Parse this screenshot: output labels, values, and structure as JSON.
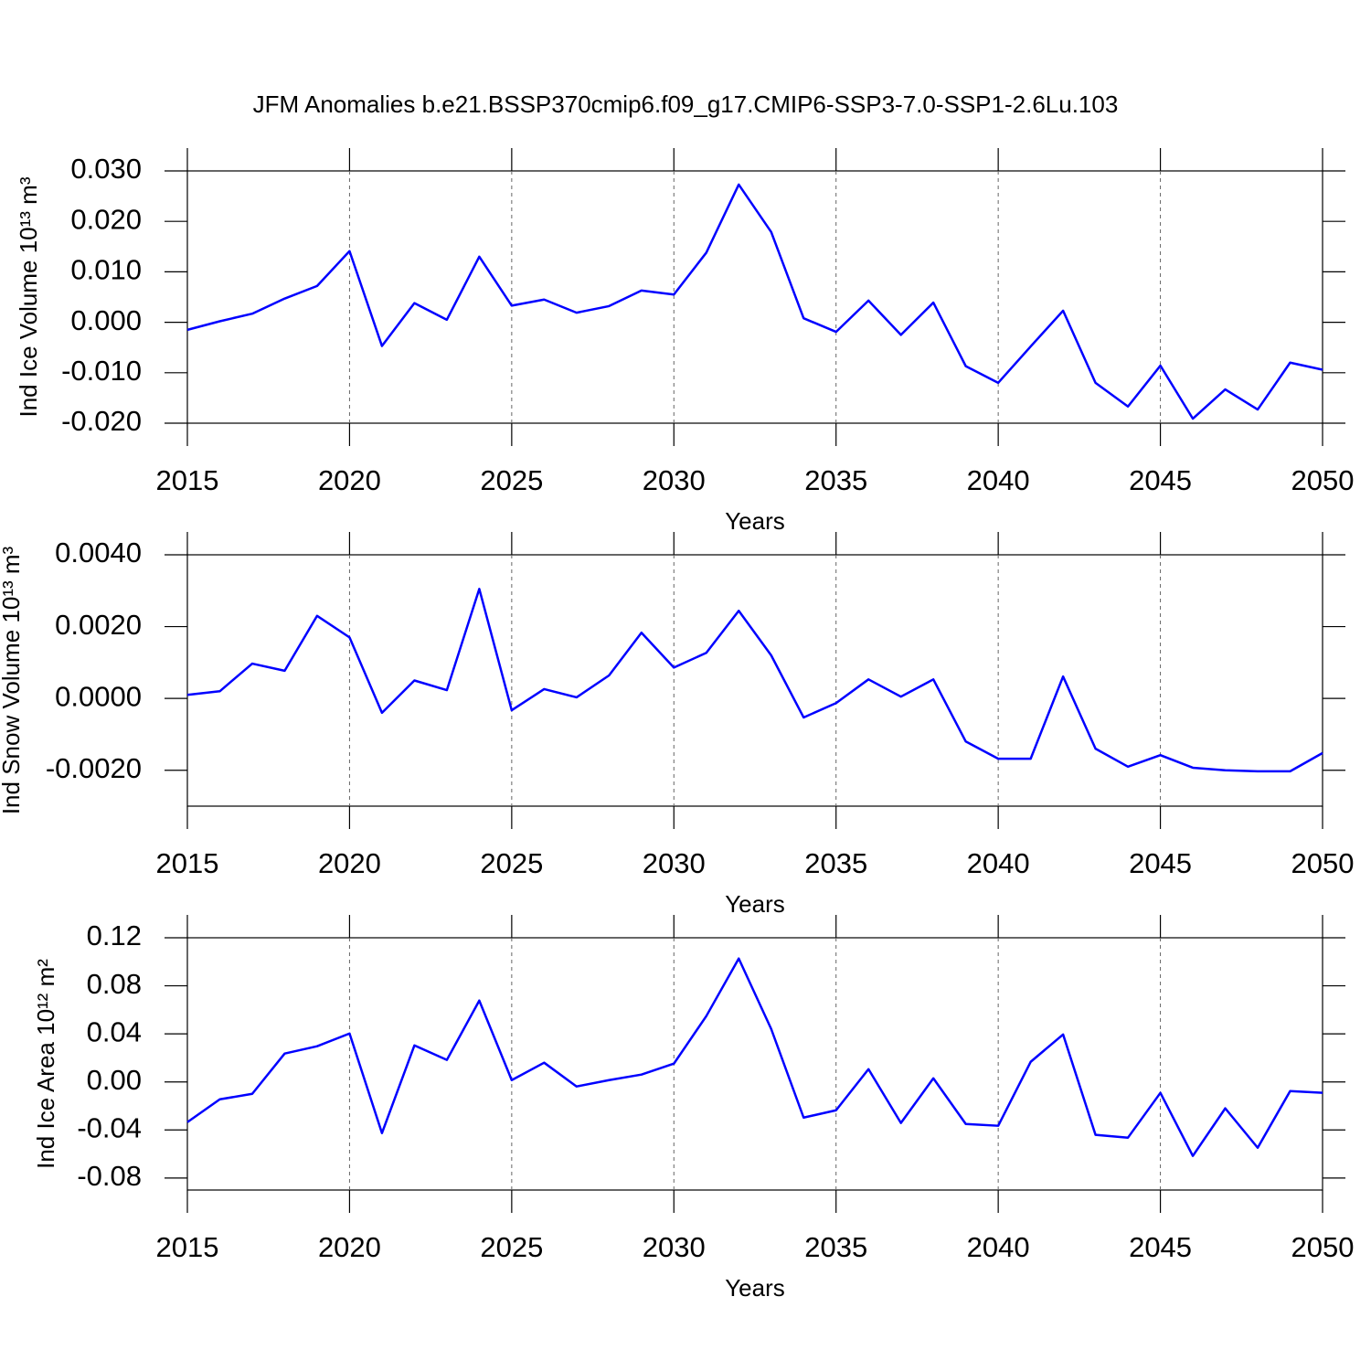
{
  "title": "JFM Anomalies b.e21.BSSP370cmip6.f09_g17.CMIP6-SSP3-7.0-SSP1-2.6Lu.103",
  "chart_data": [
    {
      "type": "line",
      "xlabel": "Years",
      "ylabel": "Ind Ice Volume 10¹³ m³",
      "x": [
        2015,
        2016,
        2017,
        2018,
        2019,
        2020,
        2021,
        2022,
        2023,
        2024,
        2025,
        2026,
        2027,
        2028,
        2029,
        2030,
        2031,
        2032,
        2033,
        2034,
        2035,
        2036,
        2037,
        2038,
        2039,
        2040,
        2041,
        2042,
        2043,
        2044,
        2045,
        2046,
        2047,
        2048,
        2049,
        2050
      ],
      "series": [
        {
          "color": "#0000ff",
          "values": [
            -0.0015,
            0.0002,
            0.0017,
            0.0047,
            0.0072,
            0.0141,
            -0.0047,
            0.0038,
            0.0005,
            0.013,
            0.0033,
            0.0045,
            0.0019,
            0.0032,
            0.0063,
            0.0055,
            0.0138,
            0.0273,
            0.0179,
            0.0008,
            -0.0019,
            0.0043,
            -0.0025,
            0.0039,
            -0.0087,
            -0.012,
            -0.0048,
            0.0023,
            -0.012,
            -0.0167,
            -0.0086,
            -0.0191,
            -0.0133,
            -0.0173,
            -0.008,
            -0.0094
          ]
        }
      ],
      "xlim": [
        2015,
        2050
      ],
      "xticks": [
        2015,
        2020,
        2025,
        2030,
        2035,
        2040,
        2045,
        2050
      ],
      "ylim": [
        -0.02,
        0.03
      ],
      "yticks": [
        {
          "value": -0.02,
          "label": "-0.020"
        },
        {
          "value": -0.01,
          "label": "-0.010"
        },
        {
          "value": 0,
          "label": "0.000"
        },
        {
          "value": 0.01,
          "label": "0.010"
        },
        {
          "value": 0.02,
          "label": "0.020"
        },
        {
          "value": 0.03,
          "label": "0.030"
        }
      ],
      "grid": true
    },
    {
      "type": "line",
      "xlabel": "Years",
      "ylabel": "Ind Snow Volume 10¹³ m³",
      "x": [
        2015,
        2016,
        2017,
        2018,
        2019,
        2020,
        2021,
        2022,
        2023,
        2024,
        2025,
        2026,
        2027,
        2028,
        2029,
        2030,
        2031,
        2032,
        2033,
        2034,
        2035,
        2036,
        2037,
        2038,
        2039,
        2040,
        2041,
        2042,
        2043,
        2044,
        2045,
        2046,
        2047,
        2048,
        2049,
        2050
      ],
      "series": [
        {
          "color": "#0000ff",
          "values": [
            0.0001,
            0.0002,
            0.00097,
            0.00077,
            0.0023,
            0.0017,
            -0.0004,
            0.0005,
            0.00023,
            0.00305,
            -0.00033,
            0.00026,
            3e-05,
            0.00064,
            0.00183,
            0.00086,
            0.00127,
            0.00244,
            0.0012,
            -0.00053,
            -0.00013,
            0.00053,
            5e-05,
            0.00053,
            -0.0012,
            -0.00168,
            -0.00168,
            0.00061,
            -0.0014,
            -0.0019,
            -0.00158,
            -0.00193,
            -0.002,
            -0.00203,
            -0.00203,
            -0.00152
          ]
        }
      ],
      "xlim": [
        2015,
        2050
      ],
      "xticks": [
        2015,
        2020,
        2025,
        2030,
        2035,
        2040,
        2045,
        2050
      ],
      "ylim": [
        -0.003,
        0.004
      ],
      "yticks": [
        {
          "value": -0.002,
          "label": "-0.0020"
        },
        {
          "value": 0,
          "label": "0.0000"
        },
        {
          "value": 0.002,
          "label": "0.0020"
        },
        {
          "value": 0.004,
          "label": "0.0040"
        }
      ],
      "grid": true
    },
    {
      "type": "line",
      "xlabel": "Years",
      "ylabel": "Ind Ice Area 10¹² m²",
      "x": [
        2015,
        2016,
        2017,
        2018,
        2019,
        2020,
        2021,
        2022,
        2023,
        2024,
        2025,
        2026,
        2027,
        2028,
        2029,
        2030,
        2031,
        2032,
        2033,
        2034,
        2035,
        2036,
        2037,
        2038,
        2039,
        2040,
        2041,
        2042,
        2043,
        2044,
        2045,
        2046,
        2047,
        2048,
        2049,
        2050
      ],
      "series": [
        {
          "color": "#0000ff",
          "values": [
            -0.0335,
            -0.0145,
            -0.0099,
            0.0236,
            0.0297,
            0.0403,
            -0.0426,
            0.0304,
            0.0183,
            0.0677,
            0.0015,
            0.016,
            -0.0038,
            0.0015,
            0.0061,
            0.0152,
            0.0548,
            0.1027,
            0.0441,
            -0.0297,
            -0.0236,
            0.0106,
            -0.0342,
            0.003,
            -0.035,
            -0.0365,
            0.0167,
            0.0395,
            -0.0441,
            -0.0464,
            -0.0091,
            -0.0616,
            -0.022,
            -0.0548,
            -0.0076,
            -0.0091
          ]
        }
      ],
      "xlim": [
        2015,
        2050
      ],
      "xticks": [
        2015,
        2020,
        2025,
        2030,
        2035,
        2040,
        2045,
        2050
      ],
      "ylim": [
        -0.09,
        0.12
      ],
      "yticks": [
        {
          "value": -0.08,
          "label": "-0.08"
        },
        {
          "value": -0.04,
          "label": "-0.04"
        },
        {
          "value": 0,
          "label": "0.00"
        },
        {
          "value": 0.04,
          "label": "0.04"
        },
        {
          "value": 0.08,
          "label": "0.08"
        },
        {
          "value": 0.12,
          "label": "0.12"
        }
      ],
      "grid": true
    }
  ]
}
